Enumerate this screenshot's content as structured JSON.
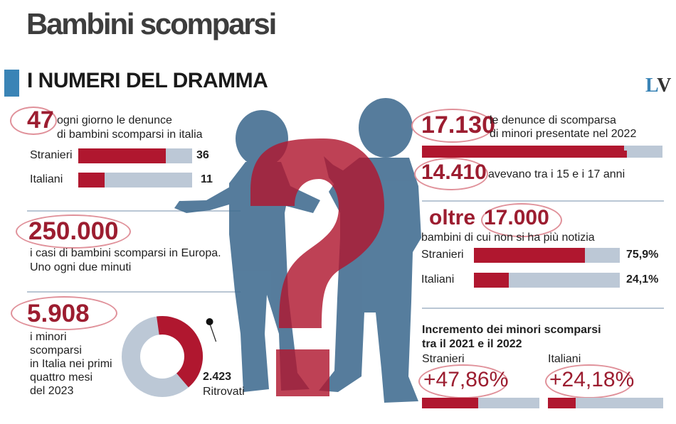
{
  "header": {
    "title": "Bambini scomparsi",
    "section_title": "I NUMERI DEL DRAMMA",
    "logo": "LV"
  },
  "colors": {
    "accent_red": "#b0172f",
    "number_red": "#9c1d30",
    "track_grey": "#bcc8d6",
    "silhouette_blue": "#3f6b8f",
    "section_blue": "#3a84b6"
  },
  "icons": [
    "children-silhouette",
    "question-mark"
  ],
  "daily": {
    "number": "47",
    "text_line1": "ogni giorno le denunce",
    "text_line2": "di bambini scomparsi in italia"
  },
  "europe": {
    "number": "250.000",
    "text_line1": "i casi di bambini scomparsi in Europa.",
    "text_line2": "Uno ogni due minuti"
  },
  "italy_2023": {
    "number": "5.908",
    "text_lines": [
      "i minori",
      "scomparsi",
      "in Italia nei primi",
      "quattro mesi",
      "del 2023"
    ],
    "found_value": "2.423",
    "found_label": "Ritrovati"
  },
  "reports_2022": {
    "number": "17.130",
    "text_line1": "le denunce di scomparsa",
    "text_line2": "di minori presentate nel 2022"
  },
  "teens": {
    "number": "14.410",
    "text": "avevano tra i 15 e i 17 anni"
  },
  "no_news": {
    "prefix": "oltre",
    "number": "17.000",
    "text": "bambini di cui non si ha più notizia"
  },
  "increase": {
    "title_line1": "Incremento dei minori scomparsi",
    "title_line2": "tra il 2021 e il 2022"
  },
  "chart_data": [
    {
      "type": "bar",
      "orientation": "horizontal",
      "title": "",
      "categories": [
        "Stranieri",
        "Italiani"
      ],
      "values": [
        36,
        11
      ],
      "value_labels": [
        "36",
        "11"
      ],
      "max": 47
    },
    {
      "type": "bar",
      "orientation": "horizontal",
      "title": "",
      "categories": [
        ""
      ],
      "values": [
        14410
      ],
      "max": 17130
    },
    {
      "type": "bar",
      "orientation": "horizontal",
      "title": "",
      "categories": [
        "Stranieri",
        "Italiani"
      ],
      "values": [
        75.9,
        24.1
      ],
      "value_labels": [
        "75,9%",
        "24,1%"
      ],
      "max": 100
    },
    {
      "type": "pie",
      "title": "",
      "donut": true,
      "categories": [
        "Ritrovati",
        ""
      ],
      "values": [
        2423,
        3485
      ],
      "total": 5908
    },
    {
      "type": "bar",
      "orientation": "horizontal",
      "title": "Incremento dei minori scomparsi tra il 2021 e il 2022",
      "categories": [
        "Stranieri",
        "Italiani"
      ],
      "values": [
        47.86,
        24.18
      ],
      "value_labels": [
        "+47,86%",
        "+24,18%"
      ],
      "max": 100
    }
  ]
}
